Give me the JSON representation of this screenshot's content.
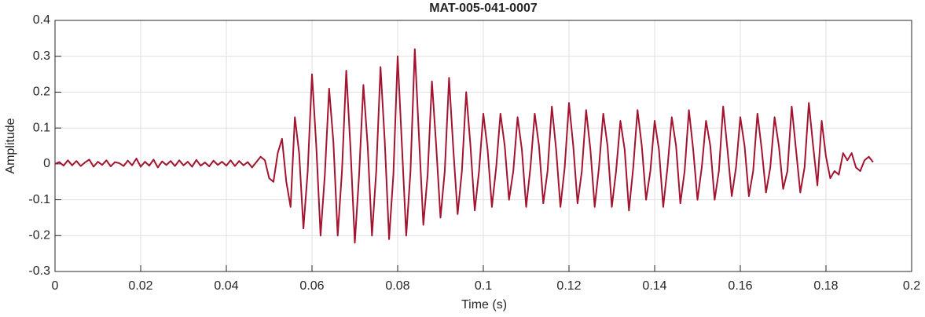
{
  "chart_data": {
    "type": "line",
    "title": "MAT-005-041-0007",
    "x_label": "Time (s)",
    "y_label": "Amplitude",
    "x": [
      0,
      0.001,
      0.002,
      0.003,
      0.004,
      0.005,
      0.006,
      0.007,
      0.008,
      0.009,
      0.01,
      0.011,
      0.012,
      0.013,
      0.014,
      0.015,
      0.016,
      0.017,
      0.018,
      0.019,
      0.02,
      0.021,
      0.022,
      0.023,
      0.024,
      0.025,
      0.026,
      0.027,
      0.028,
      0.029,
      0.03,
      0.031,
      0.032,
      0.033,
      0.034,
      0.035,
      0.036,
      0.037,
      0.038,
      0.039,
      0.04,
      0.041,
      0.042,
      0.043,
      0.044,
      0.045,
      0.046,
      0.047,
      0.048,
      0.049,
      0.05,
      0.051,
      0.052,
      0.053,
      0.054,
      0.055,
      0.056,
      0.057,
      0.058,
      0.059,
      0.06,
      0.061,
      0.062,
      0.063,
      0.064,
      0.065,
      0.066,
      0.067,
      0.068,
      0.069,
      0.07,
      0.071,
      0.072,
      0.073,
      0.074,
      0.075,
      0.076,
      0.077,
      0.078,
      0.079,
      0.08,
      0.081,
      0.082,
      0.083,
      0.084,
      0.085,
      0.086,
      0.087,
      0.088,
      0.089,
      0.09,
      0.091,
      0.092,
      0.093,
      0.094,
      0.095,
      0.096,
      0.097,
      0.098,
      0.099,
      0.1,
      0.101,
      0.102,
      0.103,
      0.104,
      0.105,
      0.106,
      0.107,
      0.108,
      0.109,
      0.11,
      0.111,
      0.112,
      0.113,
      0.114,
      0.115,
      0.116,
      0.117,
      0.118,
      0.119,
      0.12,
      0.121,
      0.122,
      0.123,
      0.124,
      0.125,
      0.126,
      0.127,
      0.128,
      0.129,
      0.13,
      0.131,
      0.132,
      0.133,
      0.134,
      0.135,
      0.136,
      0.137,
      0.138,
      0.139,
      0.14,
      0.141,
      0.142,
      0.143,
      0.144,
      0.145,
      0.146,
      0.147,
      0.148,
      0.149,
      0.15,
      0.151,
      0.152,
      0.153,
      0.154,
      0.155,
      0.156,
      0.157,
      0.158,
      0.159,
      0.16,
      0.161,
      0.162,
      0.163,
      0.164,
      0.165,
      0.166,
      0.167,
      0.168,
      0.169,
      0.17,
      0.171,
      0.172,
      0.173,
      0.174,
      0.175,
      0.176,
      0.177,
      0.178,
      0.179,
      0.18,
      0.181,
      0.182,
      0.183,
      0.184,
      0.185,
      0.186,
      0.187,
      0.188,
      0.189,
      0.19,
      0.191
    ],
    "series": [
      {
        "color": "#a2142f",
        "values": [
          0,
          0.005,
          -0.005,
          0.01,
          -0.004,
          0.008,
          -0.006,
          0.004,
          0.012,
          -0.008,
          0.006,
          -0.003,
          0.01,
          -0.007,
          0.005,
          0.002,
          -0.006,
          0.009,
          -0.004,
          0.015,
          -0.008,
          0.006,
          -0.005,
          0.012,
          -0.01,
          0.007,
          -0.003,
          0.008,
          -0.006,
          0.01,
          -0.004,
          0.006,
          -0.008,
          0.011,
          -0.005,
          0.004,
          -0.007,
          0.009,
          -0.003,
          0.006,
          -0.005,
          0.01,
          -0.006,
          0.008,
          -0.004,
          0.005,
          -0.01,
          0.005,
          0.02,
          0.01,
          -0.04,
          -0.05,
          0.03,
          0.07,
          -0.05,
          -0.12,
          0.13,
          0.03,
          -0.18,
          -0.02,
          0.25,
          0.05,
          -0.2,
          -0.03,
          0.21,
          0.06,
          -0.2,
          -0.02,
          0.26,
          0.04,
          -0.22,
          -0.03,
          0.22,
          0.05,
          -0.2,
          -0.02,
          0.27,
          0.06,
          -0.21,
          -0.03,
          0.3,
          0.05,
          -0.2,
          -0.02,
          0.32,
          0.07,
          -0.17,
          -0.03,
          0.23,
          0.05,
          -0.15,
          -0.02,
          0.24,
          0.04,
          -0.14,
          -0.02,
          0.2,
          0.05,
          -0.13,
          -0.02,
          0.14,
          0.04,
          -0.12,
          -0.01,
          0.14,
          0.05,
          -0.1,
          -0.02,
          0.13,
          0.04,
          -0.12,
          -0.01,
          0.14,
          0.05,
          -0.11,
          -0.02,
          0.16,
          0.04,
          -0.12,
          -0.01,
          0.17,
          0.05,
          -0.11,
          -0.02,
          0.15,
          0.04,
          -0.12,
          -0.01,
          0.14,
          0.05,
          -0.12,
          -0.02,
          0.12,
          0.04,
          -0.13,
          -0.01,
          0.15,
          0.05,
          -0.1,
          -0.02,
          0.12,
          0.04,
          -0.12,
          -0.01,
          0.13,
          0.05,
          -0.11,
          -0.02,
          0.15,
          0.04,
          -0.1,
          -0.01,
          0.12,
          0.05,
          -0.1,
          -0.02,
          0.16,
          0.04,
          -0.09,
          -0.01,
          0.13,
          0.05,
          -0.09,
          -0.02,
          0.14,
          0.04,
          -0.08,
          -0.01,
          0.13,
          0.05,
          -0.07,
          -0.02,
          0.16,
          0.04,
          -0.08,
          -0.01,
          0.17,
          0.05,
          -0.06,
          0.12,
          0.02,
          -0.04,
          -0.02,
          -0.03,
          0.03,
          0.01,
          0.03,
          -0.01,
          -0.02,
          0.01,
          0.02,
          0.005
        ]
      }
    ],
    "xlim": [
      0,
      0.2
    ],
    "xticks": [
      0,
      0.02,
      0.04,
      0.06,
      0.08,
      0.1,
      0.12,
      0.14,
      0.16,
      0.18,
      0.2
    ],
    "ylim": [
      -0.3,
      0.4
    ],
    "yticks": [
      -0.3,
      -0.2,
      -0.1,
      0,
      0.1,
      0.2,
      0.3,
      0.4
    ],
    "grid": true
  }
}
